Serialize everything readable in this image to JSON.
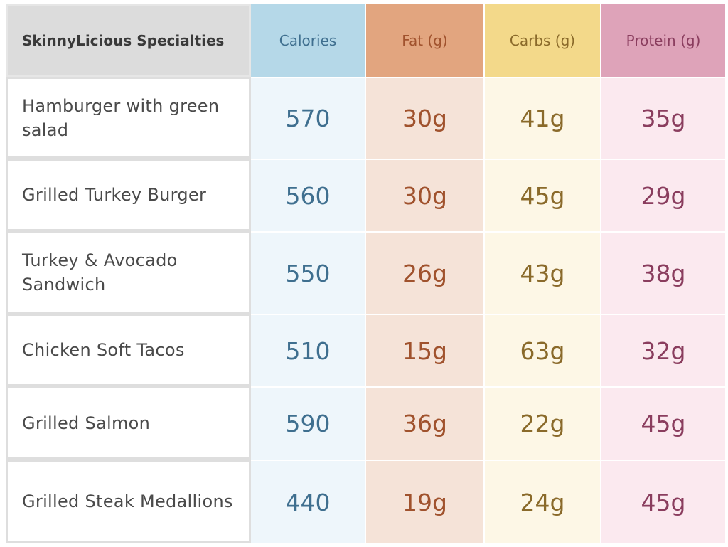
{
  "table": {
    "headers": {
      "name": "SkinnyLicious Specialties",
      "calories": "Calories",
      "fat": "Fat (g)",
      "carbs": "Carbs (g)",
      "protein": "Protein (g)"
    },
    "rows": [
      {
        "name": "Hamburger with green salad",
        "calories": "570",
        "fat": "30g",
        "carbs": "41g",
        "protein": "35g"
      },
      {
        "name": "Grilled Turkey Burger",
        "calories": "560",
        "fat": "30g",
        "carbs": "45g",
        "protein": "29g"
      },
      {
        "name": "Turkey & Avocado Sandwich",
        "calories": "550",
        "fat": "26g",
        "carbs": "43g",
        "protein": "38g"
      },
      {
        "name": "Chicken Soft Tacos",
        "calories": "510",
        "fat": "15g",
        "carbs": "63g",
        "protein": "32g"
      },
      {
        "name": "Grilled Salmon",
        "calories": "590",
        "fat": "36g",
        "carbs": "22g",
        "protein": "45g"
      },
      {
        "name": "Grilled Steak Medallions",
        "calories": "440",
        "fat": "19g",
        "carbs": "24g",
        "protein": "45g"
      }
    ]
  },
  "colors": {
    "calories_header_bg": "#b5d8e8",
    "calories_cell_bg": "#eef6fb",
    "calories_text": "#3f6f8f",
    "fat_header_bg": "#e2a57f",
    "fat_cell_bg": "#f5e3d8",
    "fat_text": "#a0522d",
    "carbs_header_bg": "#f3d98a",
    "carbs_cell_bg": "#fdf7e6",
    "carbs_text": "#8a6a2a",
    "protein_header_bg": "#dea3b9",
    "protein_cell_bg": "#fbe9ef",
    "protein_text": "#8a3d5e"
  }
}
